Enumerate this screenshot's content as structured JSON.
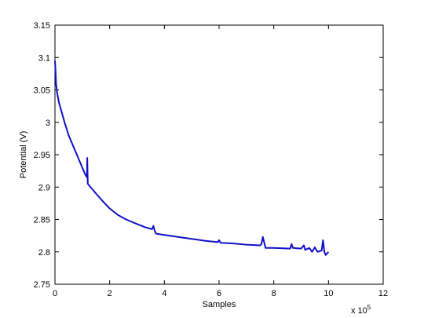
{
  "chart_data": {
    "type": "line",
    "x_label": "Samples",
    "y_label": "Potential (V)",
    "x_scale_label": {
      "base": "x 10",
      "exponent": "5"
    },
    "xlim": [
      0,
      12
    ],
    "xticks": [
      0,
      2,
      4,
      6,
      8,
      10,
      12
    ],
    "ylim": [
      2.75,
      3.15
    ],
    "yticks": [
      2.75,
      2.8,
      2.85,
      2.9,
      2.95,
      3,
      3.05,
      3.1,
      3.15
    ],
    "grid": false,
    "x": [
      0,
      0.02,
      0.04,
      0.08,
      0.15,
      0.25,
      0.35,
      0.5,
      0.65,
      0.8,
      0.95,
      1.1,
      1.17,
      1.18,
      1.2,
      1.3,
      1.5,
      1.75,
      2.0,
      2.3,
      2.6,
      3.0,
      3.3,
      3.55,
      3.6,
      3.65,
      3.7,
      4.0,
      4.5,
      5.0,
      5.5,
      5.95,
      6.0,
      6.05,
      6.5,
      7.0,
      7.5,
      7.55,
      7.6,
      7.7,
      8.0,
      8.6,
      8.65,
      8.7,
      9.0,
      9.1,
      9.15,
      9.3,
      9.4,
      9.5,
      9.6,
      9.75,
      9.8,
      9.85,
      9.9,
      10.0
    ],
    "series": [
      {
        "color": "#1010c8",
        "values": [
          3.095,
          3.08,
          3.06,
          3.045,
          3.03,
          3.015,
          3.0,
          2.98,
          2.965,
          2.95,
          2.935,
          2.92,
          2.915,
          2.945,
          2.905,
          2.9,
          2.89,
          2.878,
          2.867,
          2.857,
          2.85,
          2.843,
          2.838,
          2.835,
          2.84,
          2.832,
          2.828,
          2.826,
          2.823,
          2.82,
          2.817,
          2.815,
          2.818,
          2.814,
          2.813,
          2.811,
          2.81,
          2.812,
          2.823,
          2.806,
          2.806,
          2.805,
          2.812,
          2.806,
          2.805,
          2.81,
          2.803,
          2.806,
          2.8,
          2.807,
          2.8,
          2.802,
          2.818,
          2.8,
          2.795,
          2.8
        ]
      }
    ]
  }
}
